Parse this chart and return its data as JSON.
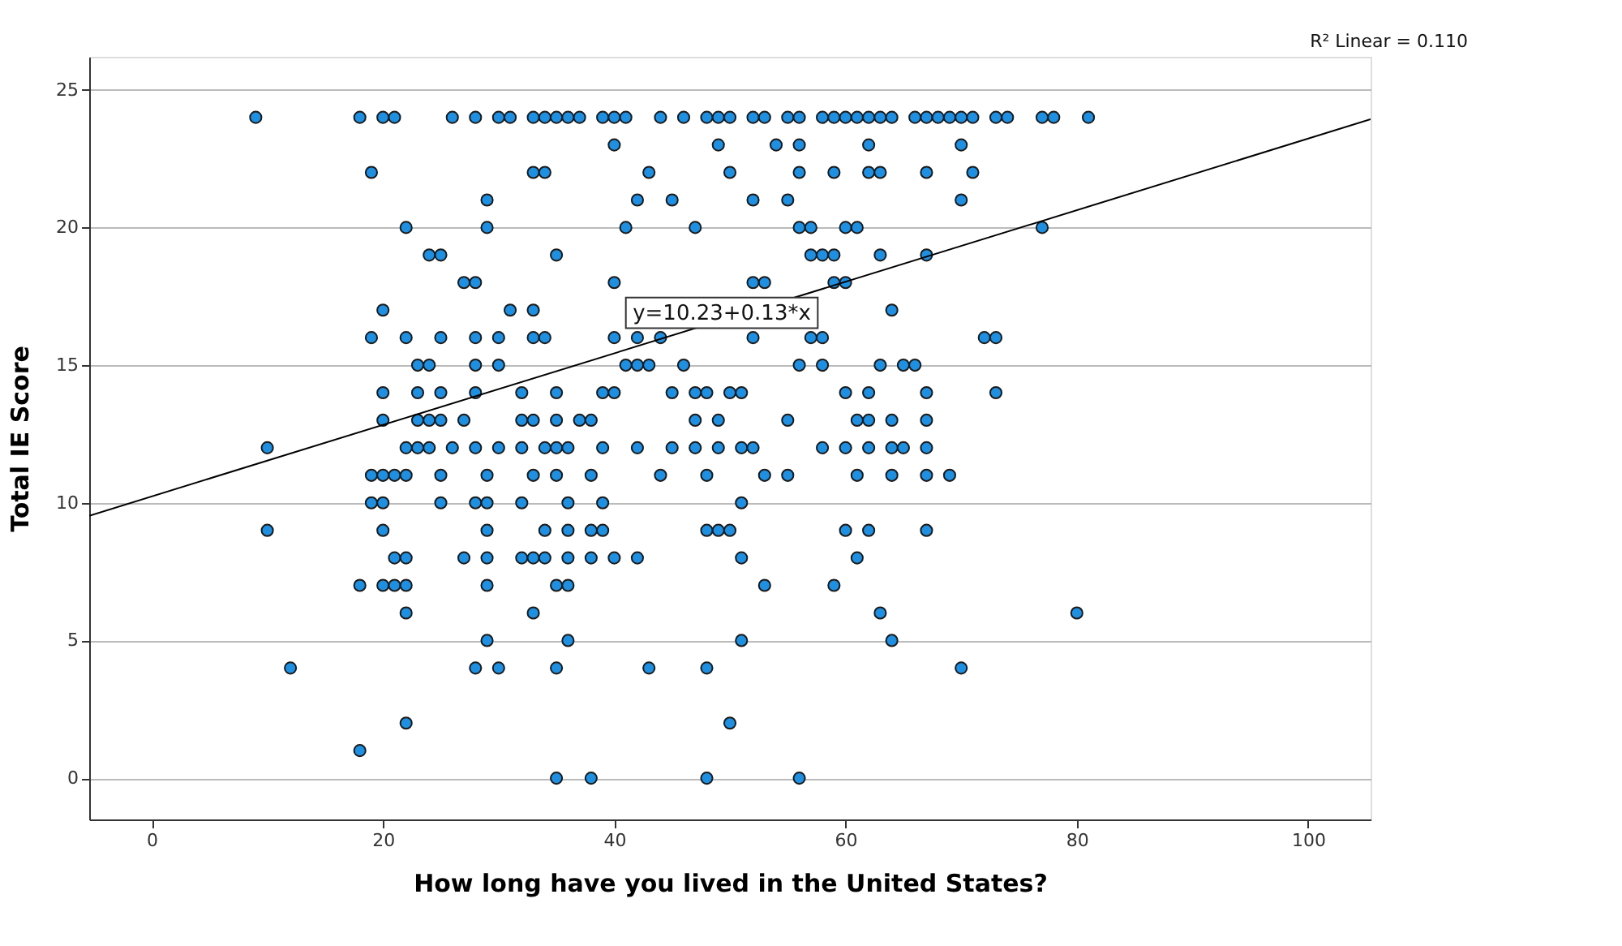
{
  "chart_data": {
    "type": "scatter",
    "xlabel": "How long have you lived in the United States?",
    "ylabel": "Total IE Score",
    "xlim": [
      -5.4,
      105.4
    ],
    "ylim": [
      -1.5,
      26.2
    ],
    "xticks": [
      0,
      20,
      40,
      60,
      80,
      100
    ],
    "yticks": [
      0,
      5,
      10,
      15,
      20,
      25
    ],
    "grid": "y",
    "series": [
      {
        "marker": "circle",
        "color": "#1e8fe1",
        "x": [
          9,
          18,
          20,
          21,
          26,
          28,
          30,
          31,
          33,
          34,
          35,
          36,
          37,
          39,
          40,
          41,
          44,
          46,
          48,
          49,
          50,
          52,
          53,
          55,
          56,
          58,
          59,
          60,
          61,
          62,
          63,
          64,
          66,
          67,
          68,
          69,
          70,
          71,
          73,
          74,
          77,
          78,
          81,
          40,
          49,
          54,
          56,
          62,
          70,
          19,
          33,
          34,
          43,
          50,
          56,
          59,
          62,
          63,
          67,
          71,
          29,
          42,
          45,
          52,
          55,
          70,
          22,
          29,
          41,
          47,
          56,
          57,
          60,
          61,
          77,
          24,
          25,
          35,
          57,
          58,
          59,
          63,
          67,
          27,
          28,
          40,
          52,
          53,
          59,
          60,
          20,
          31,
          33,
          56,
          64,
          19,
          22,
          25,
          28,
          30,
          33,
          34,
          40,
          42,
          44,
          52,
          57,
          58,
          72,
          73,
          23,
          24,
          28,
          30,
          41,
          42,
          43,
          46,
          56,
          58,
          63,
          65,
          66,
          20,
          23,
          25,
          28,
          32,
          35,
          39,
          40,
          45,
          47,
          48,
          50,
          51,
          60,
          62,
          67,
          73,
          20,
          23,
          24,
          25,
          27,
          32,
          33,
          35,
          37,
          38,
          47,
          49,
          55,
          61,
          62,
          64,
          67,
          10,
          22,
          23,
          24,
          26,
          28,
          30,
          32,
          34,
          35,
          36,
          39,
          42,
          45,
          47,
          49,
          51,
          52,
          58,
          60,
          62,
          64,
          65,
          67,
          19,
          20,
          21,
          22,
          25,
          29,
          33,
          35,
          38,
          44,
          48,
          53,
          55,
          61,
          64,
          67,
          69,
          19,
          20,
          25,
          28,
          29,
          32,
          36,
          39,
          51,
          10,
          20,
          29,
          34,
          36,
          38,
          39,
          48,
          49,
          50,
          60,
          62,
          67,
          21,
          22,
          27,
          29,
          32,
          33,
          34,
          36,
          38,
          40,
          42,
          51,
          61,
          18,
          20,
          21,
          22,
          29,
          35,
          36,
          53,
          59,
          22,
          33,
          63,
          80,
          29,
          36,
          51,
          64,
          12,
          28,
          30,
          35,
          43,
          48,
          70,
          22,
          50,
          18,
          35,
          38,
          48,
          56
        ],
        "values": [
          24,
          24,
          24,
          24,
          24,
          24,
          24,
          24,
          24,
          24,
          24,
          24,
          24,
          24,
          24,
          24,
          24,
          24,
          24,
          24,
          24,
          24,
          24,
          24,
          24,
          24,
          24,
          24,
          24,
          24,
          24,
          24,
          24,
          24,
          24,
          24,
          24,
          24,
          24,
          24,
          24,
          24,
          24,
          23,
          23,
          23,
          23,
          23,
          23,
          22,
          22,
          22,
          22,
          22,
          22,
          22,
          22,
          22,
          22,
          22,
          21,
          21,
          21,
          21,
          21,
          21,
          20,
          20,
          20,
          20,
          20,
          20,
          20,
          20,
          20,
          19,
          19,
          19,
          19,
          19,
          19,
          19,
          19,
          18,
          18,
          18,
          18,
          18,
          18,
          18,
          17,
          17,
          17,
          null,
          17,
          16,
          16,
          16,
          16,
          16,
          16,
          16,
          16,
          16,
          16,
          16,
          16,
          16,
          16,
          16,
          15,
          15,
          15,
          15,
          15,
          15,
          15,
          15,
          15,
          15,
          15,
          15,
          15,
          14,
          14,
          14,
          14,
          14,
          14,
          14,
          14,
          14,
          14,
          14,
          14,
          14,
          14,
          14,
          14,
          14,
          13,
          13,
          13,
          13,
          13,
          13,
          13,
          13,
          13,
          13,
          13,
          13,
          13,
          13,
          13,
          13,
          13,
          12,
          12,
          12,
          12,
          12,
          12,
          12,
          12,
          12,
          12,
          12,
          12,
          12,
          12,
          12,
          12,
          12,
          12,
          12,
          12,
          12,
          12,
          12,
          12,
          11,
          11,
          11,
          11,
          11,
          11,
          11,
          11,
          11,
          11,
          11,
          11,
          11,
          11,
          11,
          11,
          11,
          10,
          10,
          10,
          10,
          10,
          10,
          10,
          10,
          10,
          9,
          9,
          9,
          9,
          9,
          9,
          9,
          9,
          9,
          9,
          9,
          9,
          9,
          8,
          8,
          8,
          8,
          8,
          8,
          8,
          8,
          8,
          8,
          8,
          8,
          8,
          7,
          7,
          7,
          7,
          7,
          7,
          7,
          7,
          7,
          6,
          6,
          6,
          6,
          5,
          5,
          5,
          5,
          4,
          4,
          4,
          4,
          4,
          4,
          4,
          2,
          2,
          1,
          0,
          0,
          0,
          0
        ]
      },
      {
        "type": "line",
        "color": "#000000",
        "x": [
          -5.4,
          105.4
        ],
        "values": [
          9.53,
          23.93
        ],
        "line_style": "solid"
      }
    ],
    "annotations": [
      {
        "text": "y=10.23+0.13*x",
        "x": 49.3,
        "y": 16.9
      },
      "R² Linear = 0.110"
    ]
  }
}
